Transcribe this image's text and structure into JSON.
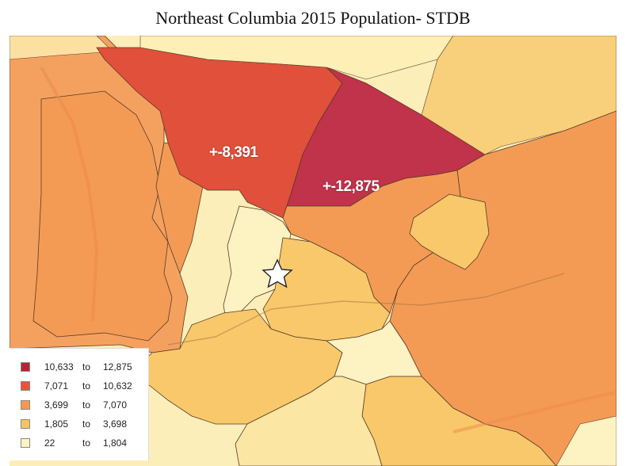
{
  "title": "Northeast Columbia 2015 Population- STDB",
  "regions": [
    {
      "label": "+-8,391",
      "color": "#e0503a"
    },
    {
      "label": "+-12,875",
      "color": "#c0334a"
    }
  ],
  "legend": [
    {
      "min": "10,633",
      "sep": "to",
      "max": "12,875",
      "color": "#c0202e"
    },
    {
      "min": "7,071",
      "sep": "to",
      "max": "10,632",
      "color": "#ea5436"
    },
    {
      "min": "3,699",
      "sep": "to",
      "max": "7,070",
      "color": "#f39a4f"
    },
    {
      "min": "1,805",
      "sep": "to",
      "max": "3,698",
      "color": "#f7c462"
    },
    {
      "min": "22",
      "sep": "to",
      "max": "1,804",
      "color": "#fdf3c0"
    }
  ],
  "marker": {
    "icon": "star-icon"
  }
}
